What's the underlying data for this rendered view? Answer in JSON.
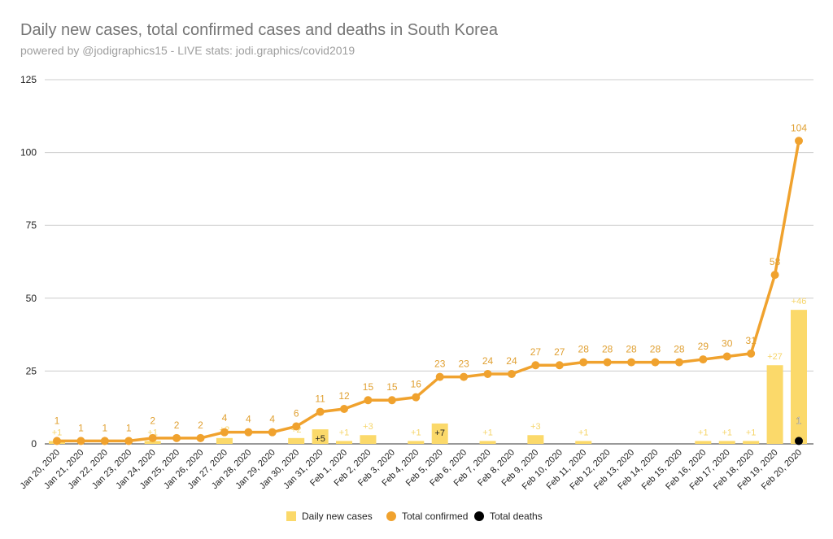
{
  "chart_data": {
    "type": "bar+line",
    "title": "Daily new cases, total confirmed cases and deaths in South Korea",
    "subtitle": "powered by @jodigraphics15 - LIVE stats: jodi.graphics/covid2019",
    "categories": [
      "Jan 20, 2020",
      "Jan 21, 2020",
      "Jan 22, 2020",
      "Jan 23, 2020",
      "Jan 24, 2020",
      "Jan 25, 2020",
      "Jan 26, 2020",
      "Jan 27, 2020",
      "Jan 28, 2020",
      "Jan 29, 2020",
      "Jan 30, 2020",
      "Jan 31, 2020",
      "Feb 1, 2020",
      "Feb 2, 2020",
      "Feb 3, 2020",
      "Feb 4, 2020",
      "Feb 5, 2020",
      "Feb 6, 2020",
      "Feb 7, 2020",
      "Feb 8, 2020",
      "Feb 9, 2020",
      "Feb 10, 2020",
      "Feb 11, 2020",
      "Feb 12, 2020",
      "Feb 13, 2020",
      "Feb 14, 2020",
      "Feb 15, 2020",
      "Feb 16, 2020",
      "Feb 17, 2020",
      "Feb 18, 2020",
      "Feb 19, 2020",
      "Feb 20, 2020"
    ],
    "series": [
      {
        "name": "Daily new cases",
        "type": "bar",
        "color": "#fbd96a",
        "values": [
          1,
          0,
          0,
          0,
          1,
          0,
          0,
          2,
          0,
          0,
          2,
          5,
          1,
          3,
          0,
          1,
          7,
          0,
          1,
          0,
          3,
          0,
          1,
          0,
          0,
          0,
          0,
          1,
          1,
          1,
          27,
          46
        ]
      },
      {
        "name": "Total confirmed",
        "type": "line",
        "color": "#f0a22e",
        "values": [
          1,
          1,
          1,
          1,
          2,
          2,
          2,
          4,
          4,
          4,
          6,
          11,
          12,
          15,
          15,
          16,
          23,
          23,
          24,
          24,
          27,
          27,
          28,
          28,
          28,
          28,
          28,
          29,
          30,
          31,
          58,
          104
        ]
      },
      {
        "name": "Total deaths",
        "type": "point",
        "color": "#000000",
        "values": [
          null,
          null,
          null,
          null,
          null,
          null,
          null,
          null,
          null,
          null,
          null,
          null,
          null,
          null,
          null,
          null,
          null,
          null,
          null,
          null,
          null,
          null,
          null,
          null,
          null,
          null,
          null,
          null,
          null,
          null,
          null,
          1
        ]
      }
    ],
    "ylim": [
      0,
      125
    ],
    "yticks": [
      0,
      25,
      50,
      75,
      100,
      125
    ],
    "grid": true,
    "legend": "bottom"
  }
}
